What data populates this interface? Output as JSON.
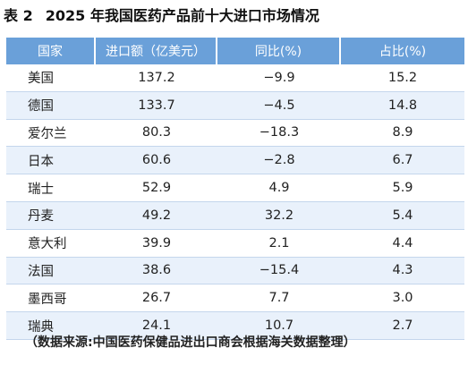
{
  "caption": {
    "number": "表 2",
    "title": "2025 年我国医药产品前十大进口市场情况"
  },
  "table": {
    "headers": [
      "国家",
      "进口额（亿美元）",
      "同比(%)",
      "占比(%)"
    ],
    "rows": [
      {
        "country": "美国",
        "value": "137.2",
        "yoy": "−9.9",
        "share": "15.2"
      },
      {
        "country": "德国",
        "value": "133.7",
        "yoy": "−4.5",
        "share": "14.8"
      },
      {
        "country": "爱尔兰",
        "value": "80.3",
        "yoy": "−18.3",
        "share": "8.9"
      },
      {
        "country": "日本",
        "value": "60.6",
        "yoy": "−2.8",
        "share": "6.7"
      },
      {
        "country": "瑞士",
        "value": "52.9",
        "yoy": "4.9",
        "share": "5.9"
      },
      {
        "country": "丹麦",
        "value": "49.2",
        "yoy": "32.2",
        "share": "5.4"
      },
      {
        "country": "意大利",
        "value": "39.9",
        "yoy": "2.1",
        "share": "4.4"
      },
      {
        "country": "法国",
        "value": "38.6",
        "yoy": "−15.4",
        "share": "4.3"
      },
      {
        "country": "墨西哥",
        "value": "26.7",
        "yoy": "7.7",
        "share": "3.0"
      },
      {
        "country": "瑞典",
        "value": "24.1",
        "yoy": "10.7",
        "share": "2.7"
      }
    ]
  },
  "source": "（数据来源:中国医药保健品进出口商会根据海关数据整理）",
  "colors": {
    "header_bg": "#6aa0d9",
    "stripe_bg": "#e9f1fb",
    "divider": "#c4d6ec"
  }
}
